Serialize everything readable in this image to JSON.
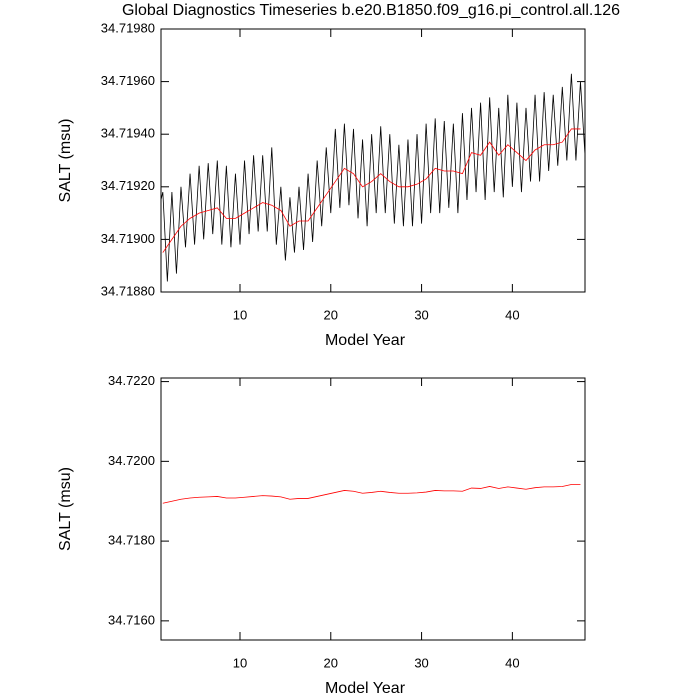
{
  "chart_data": [
    {
      "type": "line",
      "title": "Global Diagnostics Timeseries b.e20.B1850.f09_g16.pi_control.all.126",
      "y_label": "SALT (msu)",
      "x_label": "Model Year",
      "xlim": [
        1.3,
        48
      ],
      "xticks": [
        10,
        20,
        30,
        40
      ],
      "ylim": [
        34.7188,
        34.7198
      ],
      "yticks": [
        {
          "value": 34.7188,
          "label": "34.71880"
        },
        {
          "value": 34.719,
          "label": "34.71900"
        },
        {
          "value": 34.7192,
          "label": "34.71920"
        },
        {
          "value": 34.7194,
          "label": "34.71940"
        },
        {
          "value": 34.7196,
          "label": "34.71960"
        },
        {
          "value": 34.7198,
          "label": "34.71980"
        }
      ],
      "series": [
        {
          "color": "#000000",
          "x": [
            1.3,
            1.5,
            2,
            2.5,
            3,
            3.5,
            4,
            4.5,
            5,
            5.5,
            6,
            6.5,
            7,
            7.5,
            8,
            8.5,
            9,
            9.5,
            10,
            10.5,
            11,
            11.5,
            12,
            12.5,
            13,
            13.5,
            14,
            14.5,
            15,
            15.5,
            16,
            16.5,
            17,
            17.5,
            18,
            18.5,
            19,
            19.5,
            20,
            20.5,
            21,
            21.5,
            22,
            22.5,
            23,
            23.5,
            24,
            24.5,
            25,
            25.5,
            26,
            26.5,
            27,
            27.5,
            28,
            28.5,
            29,
            29.5,
            30,
            30.5,
            31,
            31.5,
            32,
            32.5,
            33,
            33.5,
            34,
            34.5,
            35,
            35.5,
            36,
            36.5,
            37,
            37.5,
            38,
            38.5,
            39,
            39.5,
            40,
            40.5,
            41,
            41.5,
            42,
            42.5,
            43,
            43.5,
            44,
            44.5,
            45,
            45.5,
            46,
            46.5,
            47,
            47.5,
            48
          ],
          "values": [
            34.71915,
            34.71918,
            34.71884,
            34.71918,
            34.71887,
            34.7192,
            34.71897,
            34.71925,
            34.71898,
            34.71928,
            34.719,
            34.71929,
            34.71902,
            34.7193,
            34.71898,
            34.71928,
            34.71897,
            34.71925,
            34.71898,
            34.7193,
            34.71902,
            34.71932,
            34.71903,
            34.71932,
            34.71903,
            34.71935,
            34.71898,
            34.7192,
            34.71892,
            34.71916,
            34.71895,
            34.7192,
            34.71896,
            34.71925,
            34.71899,
            34.7193,
            34.71905,
            34.71935,
            34.7191,
            34.71942,
            34.71912,
            34.71944,
            34.71913,
            34.71942,
            34.71908,
            34.71938,
            34.71905,
            34.7194,
            34.7191,
            34.71943,
            34.7191,
            34.7194,
            34.71906,
            34.71936,
            34.71905,
            34.71938,
            34.71905,
            34.7194,
            34.71906,
            34.71944,
            34.7191,
            34.71946,
            34.7191,
            34.71945,
            34.71912,
            34.71944,
            34.7191,
            34.71948,
            34.71915,
            34.7195,
            34.71918,
            34.71952,
            34.71915,
            34.71954,
            34.71918,
            34.7195,
            34.71916,
            34.71955,
            34.7192,
            34.71952,
            34.71918,
            34.7195,
            34.71922,
            34.71955,
            34.71922,
            34.71956,
            34.71926,
            34.71955,
            34.71928,
            34.71958,
            34.7193,
            34.71963,
            34.7193,
            34.7196,
            34.71932
          ]
        },
        {
          "color": "#ff0000",
          "x": [
            1.5,
            2.5,
            3.5,
            4.5,
            5.5,
            6.5,
            7.5,
            8.5,
            9.5,
            10.5,
            11.5,
            12.5,
            13.5,
            14.5,
            15.5,
            16.5,
            17.5,
            18.5,
            19.5,
            20.5,
            21.5,
            22.5,
            23.5,
            24.5,
            25.5,
            26.5,
            27.5,
            28.5,
            29.5,
            30.5,
            31.5,
            32.5,
            33.5,
            34.5,
            35.5,
            36.5,
            37.5,
            38.5,
            39.5,
            40.5,
            41.5,
            42.5,
            43.5,
            44.5,
            45.5,
            46.5,
            47.5
          ],
          "values": [
            34.71895,
            34.719,
            34.71905,
            34.71908,
            34.7191,
            34.71911,
            34.71912,
            34.71908,
            34.71908,
            34.7191,
            34.71912,
            34.71914,
            34.71913,
            34.71911,
            34.71905,
            34.71907,
            34.71907,
            34.71912,
            34.71917,
            34.71922,
            34.71927,
            34.71925,
            34.7192,
            34.71922,
            34.71925,
            34.71922,
            34.7192,
            34.7192,
            34.71921,
            34.71923,
            34.71927,
            34.71926,
            34.71926,
            34.71925,
            34.71933,
            34.71932,
            34.71937,
            34.71932,
            34.71936,
            34.71933,
            34.7193,
            34.71934,
            34.71936,
            34.71936,
            34.71937,
            34.71942,
            34.71942
          ]
        }
      ]
    },
    {
      "type": "line",
      "y_label": "SALT (msu)",
      "x_label": "Model Year",
      "xlim": [
        1.3,
        48
      ],
      "xticks": [
        10,
        20,
        30,
        40
      ],
      "ylim": [
        34.71552,
        34.72209
      ],
      "yticks": [
        {
          "value": 34.716,
          "label": "34.7160"
        },
        {
          "value": 34.718,
          "label": "34.7180"
        },
        {
          "value": 34.72,
          "label": "34.7200"
        },
        {
          "value": 34.722,
          "label": "34.7220"
        }
      ],
      "series": [
        {
          "color": "#ff0000",
          "x": [
            1.5,
            2.5,
            3.5,
            4.5,
            5.5,
            6.5,
            7.5,
            8.5,
            9.5,
            10.5,
            11.5,
            12.5,
            13.5,
            14.5,
            15.5,
            16.5,
            17.5,
            18.5,
            19.5,
            20.5,
            21.5,
            22.5,
            23.5,
            24.5,
            25.5,
            26.5,
            27.5,
            28.5,
            29.5,
            30.5,
            31.5,
            32.5,
            33.5,
            34.5,
            35.5,
            36.5,
            37.5,
            38.5,
            39.5,
            40.5,
            41.5,
            42.5,
            43.5,
            44.5,
            45.5,
            46.5,
            47.5
          ],
          "values": [
            34.71895,
            34.719,
            34.71905,
            34.71908,
            34.7191,
            34.71911,
            34.71912,
            34.71908,
            34.71908,
            34.7191,
            34.71912,
            34.71914,
            34.71913,
            34.71911,
            34.71905,
            34.71907,
            34.71907,
            34.71912,
            34.71917,
            34.71922,
            34.71927,
            34.71925,
            34.7192,
            34.71922,
            34.71925,
            34.71922,
            34.7192,
            34.7192,
            34.71921,
            34.71923,
            34.71927,
            34.71926,
            34.71926,
            34.71925,
            34.71933,
            34.71932,
            34.71937,
            34.71932,
            34.71936,
            34.71933,
            34.7193,
            34.71934,
            34.71936,
            34.71936,
            34.71937,
            34.71942,
            34.71942
          ]
        }
      ]
    }
  ]
}
